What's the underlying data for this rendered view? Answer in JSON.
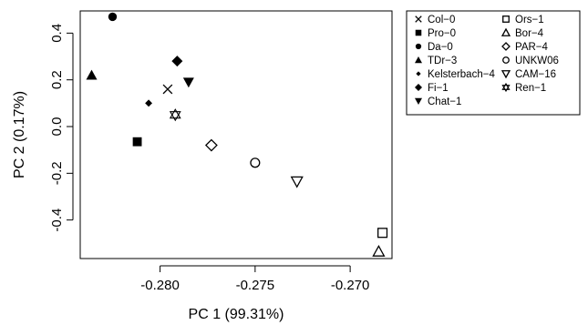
{
  "chart_data": {
    "type": "scatter",
    "title": "",
    "xlabel": "PC 1 (99.31%)",
    "ylabel": "PC 2 (0.17%)",
    "xlim": [
      -0.2842,
      -0.2678
    ],
    "ylim": [
      -0.565,
      0.495
    ],
    "x_ticks": [
      -0.28,
      -0.275,
      -0.27
    ],
    "x_tick_labels": [
      "-0.280",
      "-0.275",
      "-0.270"
    ],
    "y_ticks": [
      -0.4,
      -0.2,
      0.0,
      0.2,
      0.4
    ],
    "y_tick_labels": [
      "-0.4",
      "-0.2",
      "0.0",
      "0.2",
      "0.4"
    ],
    "grid": false,
    "legend_position": "outside-right-top",
    "series": [
      {
        "name": "Col−0",
        "marker": "x",
        "x": -0.2796,
        "y": 0.16
      },
      {
        "name": "Pro−0",
        "marker": "square-filled",
        "x": -0.2812,
        "y": -0.065
      },
      {
        "name": "Da−0",
        "marker": "circle-filled",
        "x": -0.2825,
        "y": 0.47
      },
      {
        "name": "TDr−3",
        "marker": "triangle-filled",
        "x": -0.2836,
        "y": 0.22
      },
      {
        "name": "Kelsterbach−4",
        "marker": "diamond-small-filled",
        "x": -0.2806,
        "y": 0.1
      },
      {
        "name": "Fi−1",
        "marker": "diamond-filled",
        "x": -0.2791,
        "y": 0.28
      },
      {
        "name": "Chat−1",
        "marker": "triangle-down-filled",
        "x": -0.2785,
        "y": 0.19
      },
      {
        "name": "Ors−1",
        "marker": "square-open",
        "x": -0.2683,
        "y": -0.455
      },
      {
        "name": "Bor−4",
        "marker": "triangle-open",
        "x": -0.2685,
        "y": -0.535
      },
      {
        "name": "PAR−4",
        "marker": "diamond-open",
        "x": -0.2773,
        "y": -0.08
      },
      {
        "name": "UNKW06",
        "marker": "circle-open",
        "x": -0.275,
        "y": -0.155
      },
      {
        "name": "CAM−16",
        "marker": "triangle-down-open",
        "x": -0.2728,
        "y": -0.235
      },
      {
        "name": "Ren−1",
        "marker": "star-of-david",
        "x": -0.2792,
        "y": 0.05
      }
    ]
  }
}
